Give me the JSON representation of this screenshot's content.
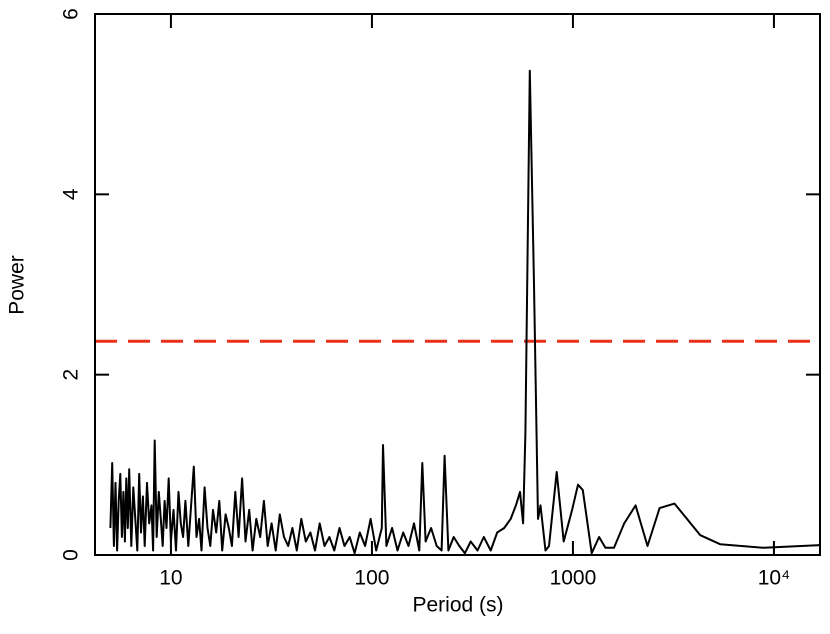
{
  "chart_data": {
    "type": "line",
    "x_label": "Period (s)",
    "y_label": "Power",
    "x_log": true,
    "xlim": [
      4.19,
      16950
    ],
    "ylim": [
      0,
      6
    ],
    "xticks": [
      10,
      100,
      1000,
      {
        "value": 10000,
        "label": "10⁴"
      }
    ],
    "yticks": [
      0,
      2,
      4,
      6
    ],
    "color": "#000000",
    "threshold": {
      "value": 2.37,
      "color": "#e8301a"
    },
    "x": [
      5.0,
      5.1,
      5.2,
      5.3,
      5.4,
      5.5,
      5.6,
      5.7,
      5.8,
      5.9,
      6.0,
      6.1,
      6.2,
      6.35,
      6.5,
      6.65,
      6.8,
      6.95,
      7.1,
      7.25,
      7.4,
      7.6,
      7.8,
      8.0,
      8.15,
      8.3,
      8.5,
      8.7,
      8.9,
      9.1,
      9.3,
      9.5,
      9.75,
      10,
      10.3,
      10.6,
      10.9,
      11.2,
      11.5,
      11.8,
      12.2,
      12.6,
      13,
      13.4,
      13.8,
      14.2,
      14.7,
      15.2,
      15.7,
      16.2,
      16.8,
      17.4,
      18,
      18.7,
      19.4,
      20.1,
      20.9,
      21.7,
      22.6,
      23.5,
      24.5,
      25.5,
      26.6,
      27.8,
      29,
      30.3,
      31.7,
      33.2,
      34.8,
      36.5,
      38.3,
      40.2,
      42.3,
      44.5,
      46.9,
      49.4,
      52.1,
      55,
      58.1,
      61.4,
      65,
      69,
      73,
      77.5,
      82,
      87,
      92.5,
      98.5,
      105,
      112,
      113.5,
      118,
      126,
      134,
      143,
      152,
      162,
      172,
      178,
      185,
      197,
      210,
      222,
      230,
      240,
      255,
      272,
      290,
      310,
      335,
      360,
      390,
      420,
      455,
      490,
      520,
      545,
      565,
      580,
      610,
      640,
      670,
      690,
      730,
      760,
      830,
      900,
      990,
      1060,
      1120,
      1240,
      1350,
      1450,
      1600,
      1800,
      2050,
      2350,
      2700,
      3200,
      4300,
      5400,
      8900,
      16950
    ],
    "values": [
      0.3,
      1.02,
      0.1,
      0.8,
      0.05,
      0.6,
      0.9,
      0.2,
      0.7,
      0.15,
      0.85,
      0.3,
      0.95,
      0.1,
      0.75,
      0.4,
      0.05,
      0.9,
      0.25,
      0.65,
      0.1,
      0.8,
      0.35,
      0.55,
      0.05,
      1.27,
      0.2,
      0.7,
      0.4,
      0.1,
      0.6,
      0.3,
      0.85,
      0.15,
      0.5,
      0.05,
      0.7,
      0.35,
      0.2,
      0.6,
      0.1,
      0.55,
      0.98,
      0.2,
      0.4,
      0.05,
      0.75,
      0.3,
      0.1,
      0.5,
      0.25,
      0.6,
      0.05,
      0.45,
      0.3,
      0.1,
      0.7,
      0.2,
      0.85,
      0.15,
      0.5,
      0.05,
      0.4,
      0.2,
      0.6,
      0.1,
      0.35,
      0.05,
      0.45,
      0.2,
      0.1,
      0.3,
      0.05,
      0.4,
      0.15,
      0.25,
      0.05,
      0.35,
      0.1,
      0.2,
      0.05,
      0.3,
      0.1,
      0.2,
      0.02,
      0.25,
      0.1,
      0.4,
      0.05,
      0.3,
      1.22,
      0.1,
      0.3,
      0.05,
      0.25,
      0.1,
      0.35,
      0.05,
      1.02,
      0.15,
      0.3,
      0.1,
      0.05,
      1.1,
      0.05,
      0.2,
      0.1,
      0.02,
      0.15,
      0.05,
      0.2,
      0.05,
      0.25,
      0.3,
      0.4,
      0.55,
      0.7,
      0.35,
      1.35,
      5.37,
      3.0,
      0.4,
      0.55,
      0.05,
      0.1,
      0.92,
      0.15,
      0.5,
      0.78,
      0.72,
      0.02,
      0.2,
      0.08,
      0.08,
      0.35,
      0.55,
      0.1,
      0.52,
      0.57,
      0.22,
      0.12,
      0.08,
      0.11
    ]
  }
}
